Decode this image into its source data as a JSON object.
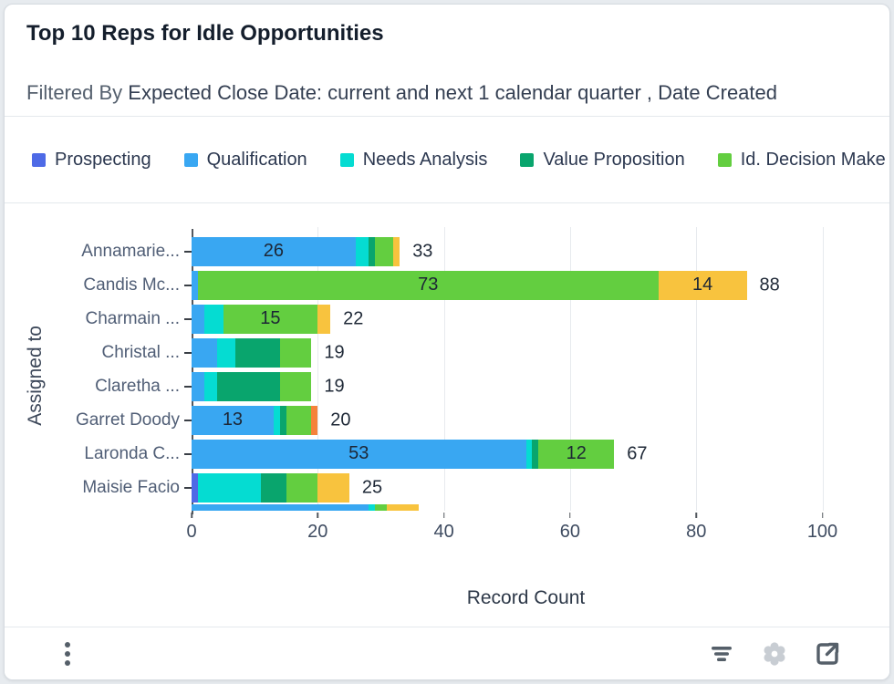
{
  "card": {
    "title": "Top 10 Reps for Idle Opportunities",
    "filter_prefix": "Filtered By ",
    "filter_value": "Expected Close Date: current and next 1 calendar quarter , Date Created"
  },
  "footer": {
    "icons": [
      "kebab-menu",
      "filter",
      "settings",
      "open-in-new"
    ]
  },
  "chart_data": {
    "type": "bar",
    "stacked": true,
    "orientation": "horizontal",
    "title": "Top 10 Reps for Idle Opportunities",
    "xlabel": "Record Count",
    "ylabel": "Assigned to",
    "xlim": [
      0,
      106
    ],
    "xticks": [
      0,
      20,
      40,
      60,
      80,
      100
    ],
    "grid": true,
    "legend_position": "top",
    "segment_label_min": 12,
    "series": [
      {
        "name": "Prospecting",
        "color": "#4e6ae6",
        "in_legend": true
      },
      {
        "name": "Qualification",
        "color": "#39a7f2",
        "in_legend": true
      },
      {
        "name": "Needs Analysis",
        "color": "#05dcd2",
        "in_legend": true
      },
      {
        "name": "Value Proposition",
        "color": "#09a56d",
        "in_legend": true
      },
      {
        "name": "Id. Decision Make",
        "color": "#63ce40",
        "in_legend": true
      },
      {
        "name": "",
        "color": "#f8c33e",
        "in_legend": false
      },
      {
        "name": "",
        "color": "#f5823b",
        "in_legend": false
      }
    ],
    "rows": [
      {
        "category": "Annamarie...",
        "values": [
          0,
          26,
          2,
          1,
          3,
          1,
          0
        ],
        "total": 33
      },
      {
        "category": "Candis Mc...",
        "values": [
          0,
          1,
          0,
          0,
          73,
          14,
          0
        ],
        "total": 88
      },
      {
        "category": "Charmain ...",
        "values": [
          0,
          2,
          3,
          0,
          15,
          2,
          0
        ],
        "total": 22
      },
      {
        "category": "Christal ...",
        "values": [
          0,
          4,
          3,
          7,
          5,
          0,
          0
        ],
        "total": 19
      },
      {
        "category": "Claretha ...",
        "values": [
          0,
          2,
          2,
          10,
          5,
          0,
          0
        ],
        "total": 19
      },
      {
        "category": "Garret Doody",
        "values": [
          0,
          13,
          1,
          1,
          4,
          0,
          1
        ],
        "total": 20
      },
      {
        "category": "Laronda C...",
        "values": [
          0,
          53,
          1,
          1,
          12,
          0,
          0
        ],
        "total": 67
      },
      {
        "category": "Maisie Facio",
        "values": [
          1,
          0,
          10,
          4,
          5,
          5,
          0
        ],
        "total": 25
      },
      {
        "category": null,
        "clipped": true,
        "values": [
          0,
          28,
          1,
          0,
          2,
          5,
          0
        ],
        "total": null
      }
    ]
  }
}
